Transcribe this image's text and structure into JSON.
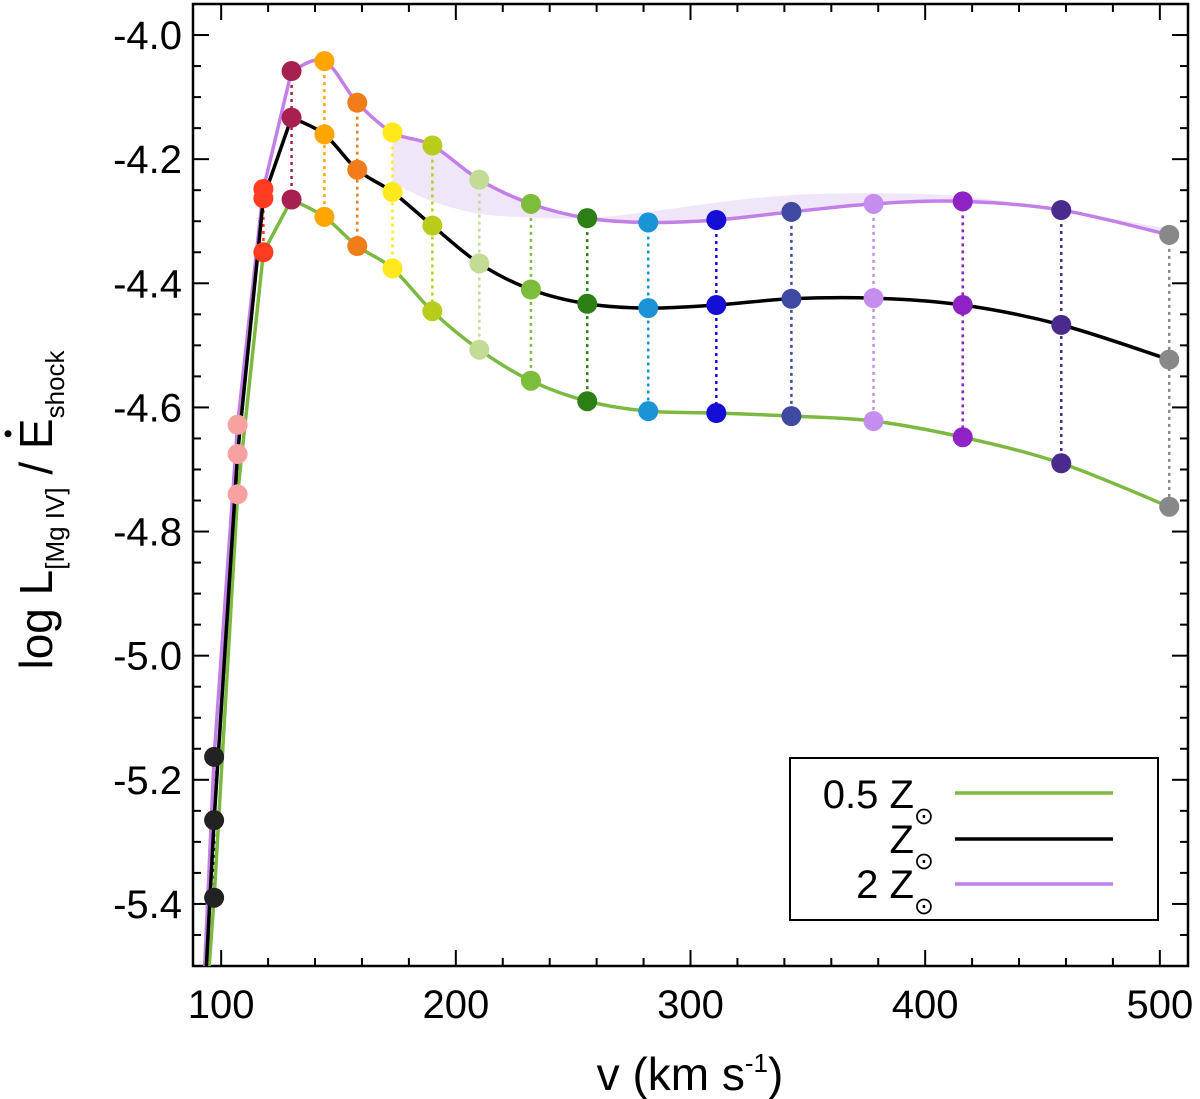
{
  "chart_data": {
    "type": "line",
    "xlabel": {
      "main": "v (km s",
      "sup": "-1",
      "close": ")"
    },
    "ylabel": {
      "main": "log L",
      "sub": "[Mg IV]",
      "sep": " / ",
      "edot": "E",
      "sub2": "shock"
    },
    "xlim": [
      88,
      512
    ],
    "ylim": [
      -5.5,
      -3.95
    ],
    "xticks": [
      100,
      200,
      300,
      400,
      500
    ],
    "xtick_labels": [
      "100",
      "200",
      "300",
      "400",
      "500"
    ],
    "yticks": [
      -5.4,
      -5.2,
      -5.0,
      -4.8,
      -4.6,
      -4.4,
      -4.2,
      -4.0
    ],
    "ytick_labels": [
      "-5.4",
      "-5.2",
      "-5.0",
      "-4.8",
      "-4.6",
      "-4.4",
      "-4.2",
      "-4.0"
    ],
    "x_minor_step": 20,
    "y_minor_step": 0.05,
    "legend": {
      "position": "lower-right",
      "entries": [
        {
          "prefix": "0.5 Z",
          "symbol": "⊙",
          "color": "#7cb941"
        },
        {
          "prefix": "Z",
          "symbol": "⊙",
          "color": "#000000"
        },
        {
          "prefix": "2 Z",
          "symbol": "⊙",
          "color": "#c27fe8"
        }
      ]
    },
    "x": [
      97,
      107,
      118,
      130,
      144,
      158,
      173,
      190,
      210,
      232,
      256,
      282,
      311,
      343,
      378,
      416,
      458,
      504
    ],
    "point_colors": [
      "#222222",
      "#f7a1a1",
      "#ff3c1f",
      "#a8204f",
      "#ffa500",
      "#f07d1a",
      "#ffe81c",
      "#b8cc1c",
      "#c2dc96",
      "#7cbd3b",
      "#2c7f14",
      "#1a94d6",
      "#150fd6",
      "#3e4aa2",
      "#c58ded",
      "#8e22c4",
      "#4b2a8e",
      "#888888"
    ],
    "series": [
      {
        "name": "0.5 Z⊙",
        "color": "#7cb941",
        "values": [
          -5.39,
          -4.74,
          -4.35,
          -4.265,
          -4.293,
          -4.34,
          -4.376,
          -4.445,
          -4.507,
          -4.557,
          -4.59,
          -4.606,
          -4.609,
          -4.614,
          -4.622,
          -4.648,
          -4.69,
          -4.76
        ]
      },
      {
        "name": "Z⊙",
        "color": "#000000",
        "values": [
          -5.265,
          -4.675,
          -4.263,
          -4.133,
          -4.16,
          -4.217,
          -4.253,
          -4.307,
          -4.368,
          -4.41,
          -4.433,
          -4.44,
          -4.435,
          -4.425,
          -4.424,
          -4.435,
          -4.467,
          -4.523
        ]
      },
      {
        "name": "2 Z⊙",
        "color": "#c27fe8",
        "values": [
          -5.163,
          -4.628,
          -4.248,
          -4.058,
          -4.042,
          -4.109,
          -4.157,
          -4.178,
          -4.233,
          -4.272,
          -4.295,
          -4.302,
          -4.298,
          -4.285,
          -4.272,
          -4.268,
          -4.282,
          -4.322
        ]
      }
    ],
    "band_upper": [
      -4.238,
      -4.268,
      -4.288,
      -4.294,
      -4.295,
      -4.285,
      -4.27,
      -4.258,
      -4.255,
      -4.26,
      -4.282,
      -4.312
    ],
    "extrapolation_x": [
      93,
      97
    ],
    "extrapolation_values": {
      "low": [
        -5.6,
        -5.39
      ],
      "mid": [
        -5.55,
        -5.265
      ],
      "high": [
        -5.5,
        -5.163
      ]
    }
  }
}
